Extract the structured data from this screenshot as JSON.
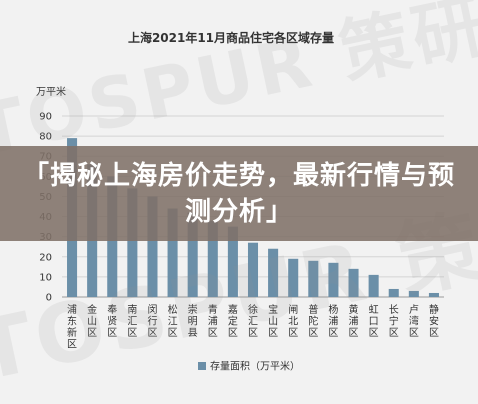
{
  "watermark": "TOSPUR 策研院",
  "banner": {
    "headline": "「揭秘上海房价走势，最新行情与预测分析」"
  },
  "chart_data": {
    "type": "bar",
    "title": "上海2021年11月商品住宅各区域存量",
    "ylabel": "万平米",
    "ylim": [
      0,
      90
    ],
    "yticks": [
      0,
      10,
      20,
      30,
      40,
      50,
      60,
      70,
      80,
      90
    ],
    "grid": true,
    "legend": "bottom",
    "categories": [
      "浦东新区",
      "金山区",
      "奉贤区",
      "南汇区",
      "闵行区",
      "松江区",
      "崇明县",
      "青浦区",
      "嘉定区",
      "徐汇区",
      "宝山区",
      "闸北区",
      "普陀区",
      "杨浦区",
      "黄浦区",
      "虹口区",
      "长宁区",
      "卢湾区",
      "静安区"
    ],
    "series": [
      {
        "name": "存量面积（万平米）",
        "color": "#6b8fa8",
        "values": [
          79,
          66,
          60,
          54,
          50,
          44,
          42,
          38,
          35,
          27,
          24,
          19,
          18,
          17,
          14,
          11,
          4,
          3,
          2
        ]
      }
    ]
  }
}
